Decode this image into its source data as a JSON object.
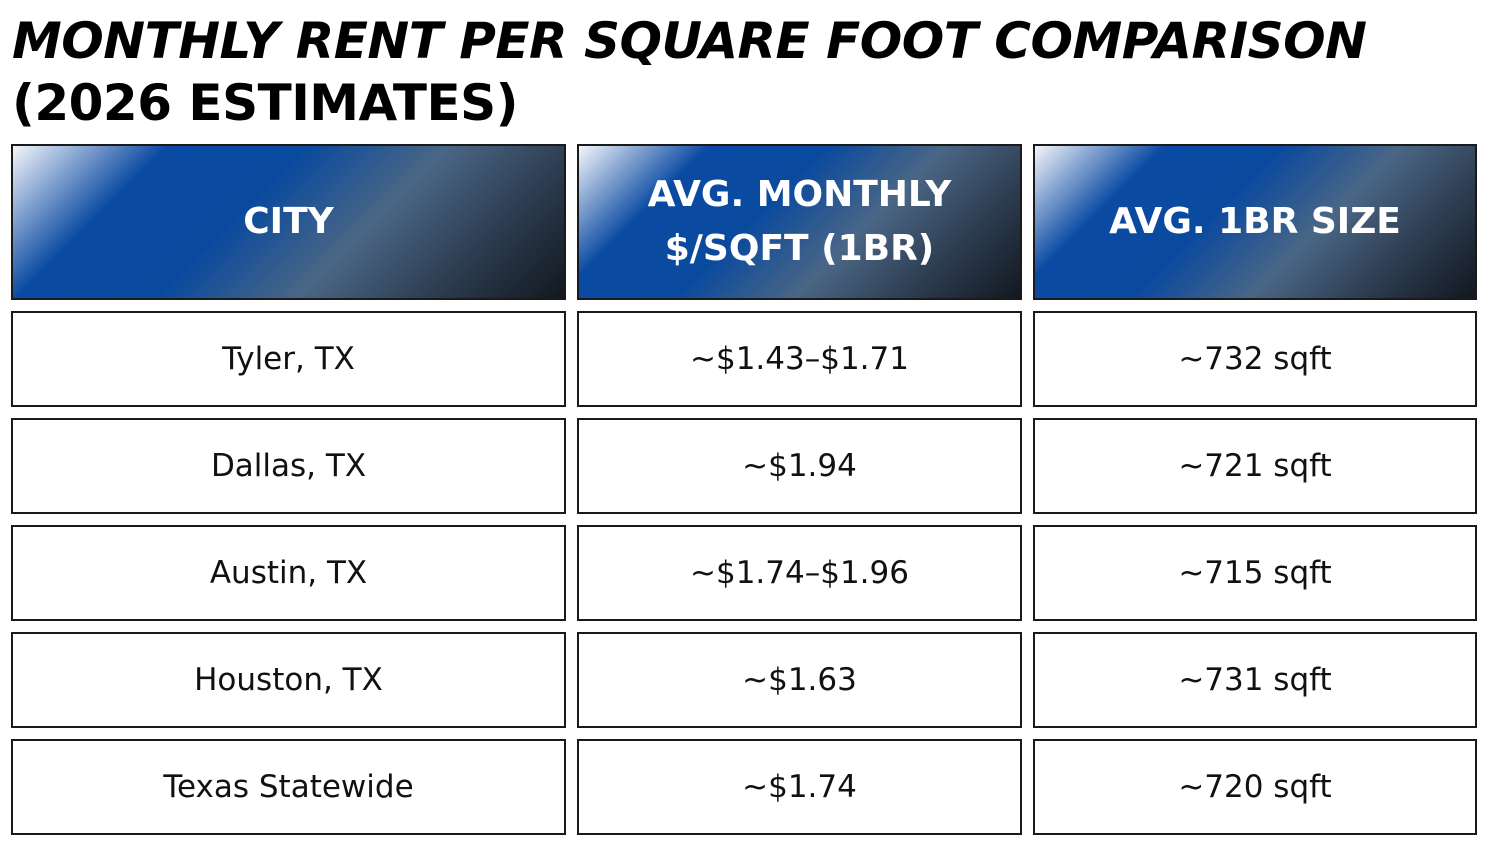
{
  "chart_data": {
    "type": "table",
    "title_line1": "MONTHLY RENT PER SQUARE FOOT COMPARISON",
    "title_line2": "(2026 ESTIMATES)",
    "columns": [
      "CITY",
      "AVG. MONTHLY $/SQFT (1BR)",
      "AVG. 1BR SIZE"
    ],
    "rows": [
      [
        "Tyler, TX",
        "~$1.43–$1.71",
        "~732 sqft"
      ],
      [
        "Dallas, TX",
        "~$1.94",
        "~721 sqft"
      ],
      [
        "Austin, TX",
        "~$1.74–$1.96",
        "~715 sqft"
      ],
      [
        "Houston, TX",
        "~$1.63",
        "~731 sqft"
      ],
      [
        "Texas Statewide",
        "~$1.74",
        "~720 sqft"
      ]
    ]
  },
  "colors": {
    "header_gradient": [
      "#f4f6fa",
      "#0b4aa3",
      "#4a6685",
      "#121820"
    ],
    "border": "#1a1a1a",
    "header_text": "#ffffff"
  }
}
